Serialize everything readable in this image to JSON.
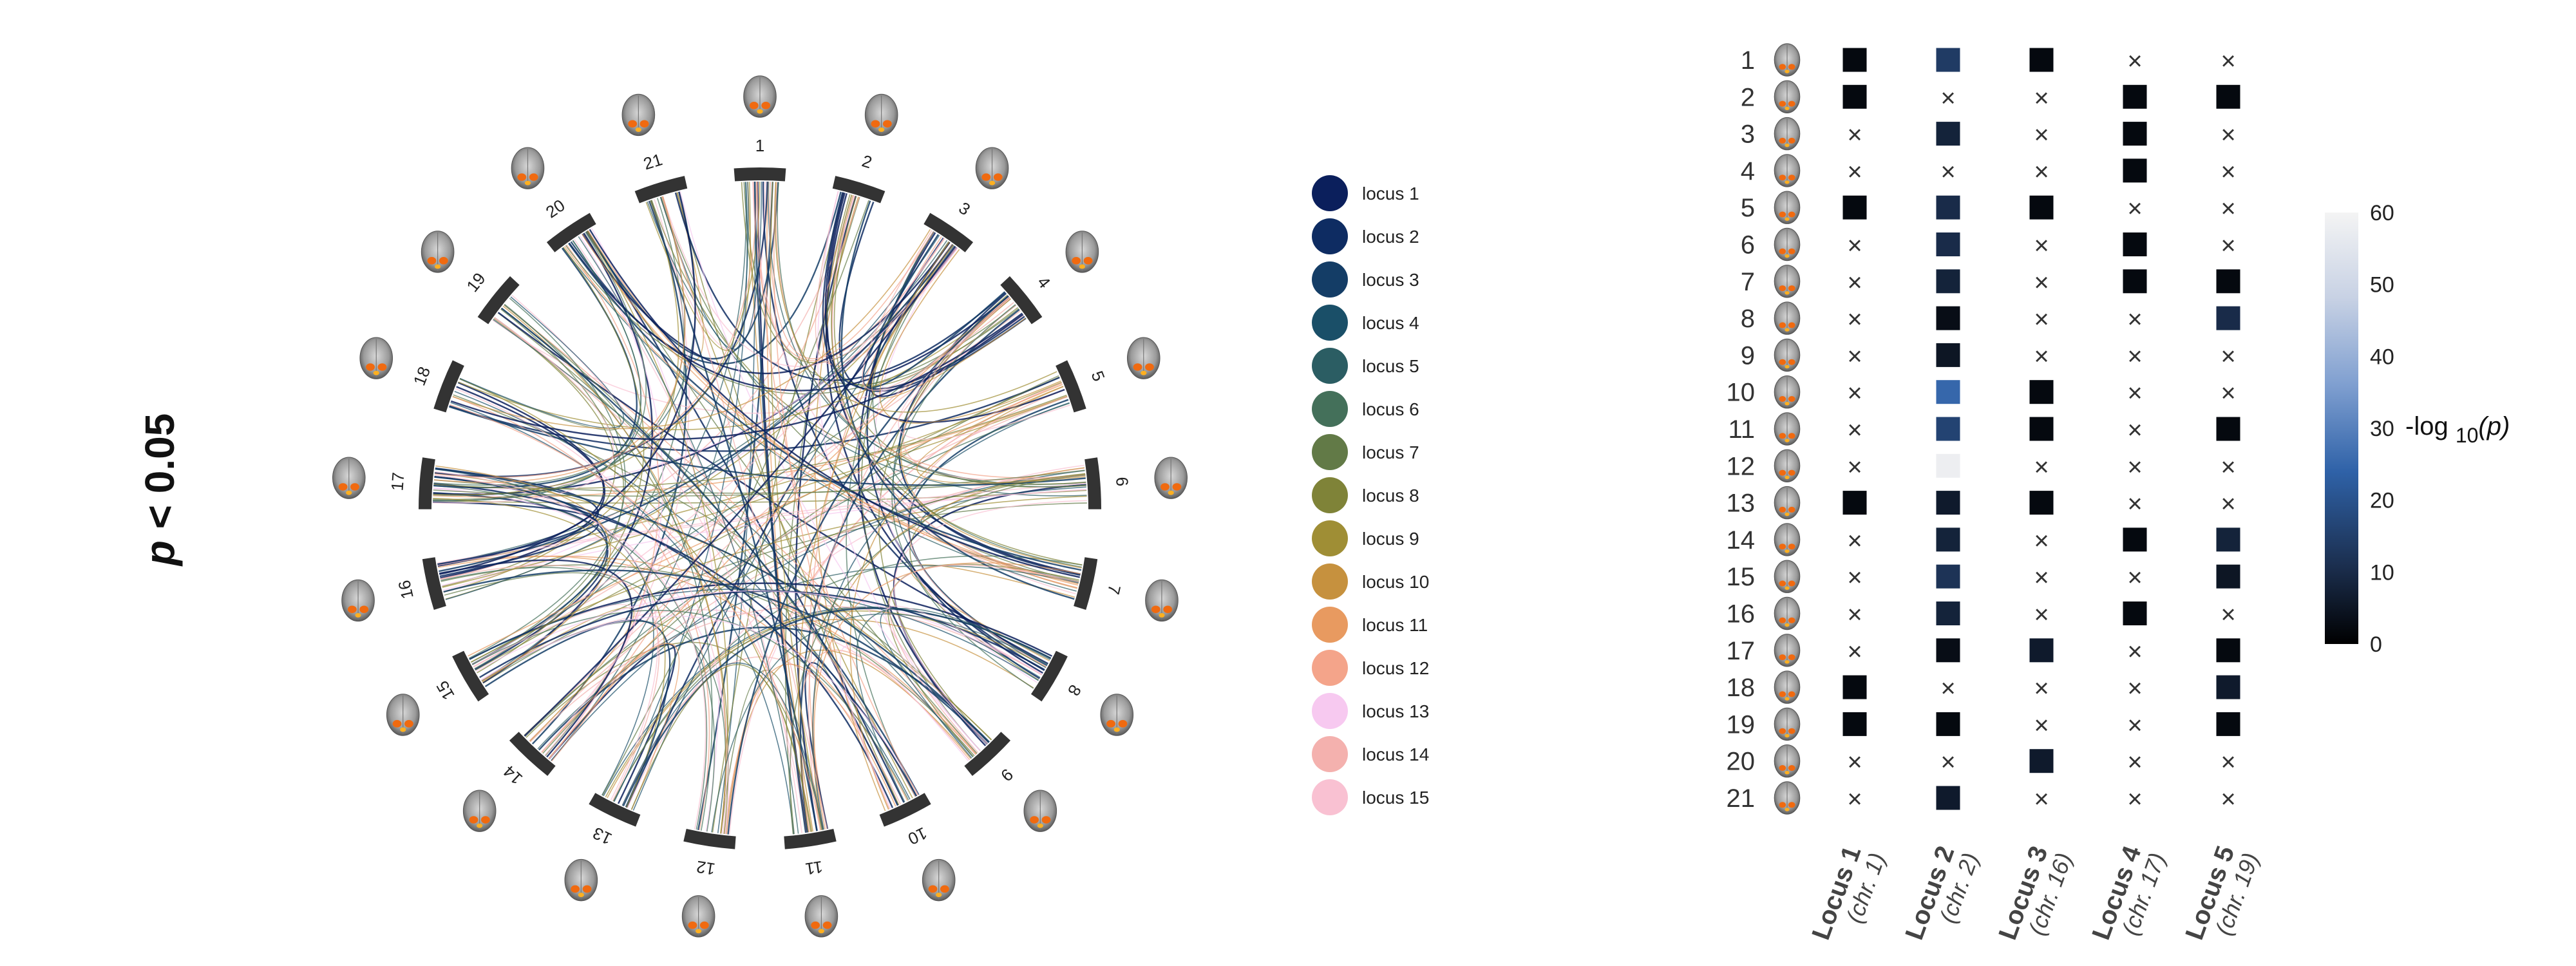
{
  "threshold": {
    "p": "p",
    "rest": " < 0.05"
  },
  "chord": {
    "numbers": [
      "1",
      "2",
      "3",
      "4",
      "5",
      "6",
      "7",
      "8",
      "9",
      "10",
      "11",
      "12",
      "13",
      "14",
      "15",
      "16",
      "17",
      "18",
      "19",
      "20",
      "21"
    ],
    "arc_color": "#333333"
  },
  "legend": [
    {
      "label": "locus 1",
      "color": "#0b1f5c"
    },
    {
      "label": "locus 2",
      "color": "#0e2c62"
    },
    {
      "label": "locus 3",
      "color": "#143d66"
    },
    {
      "label": "locus 4",
      "color": "#1a4f68"
    },
    {
      "label": "locus 5",
      "color": "#2b5d63"
    },
    {
      "label": "locus 6",
      "color": "#44705a"
    },
    {
      "label": "locus 7",
      "color": "#627a47"
    },
    {
      "label": "locus 8",
      "color": "#7f8338"
    },
    {
      "label": "locus 9",
      "color": "#9f8e35"
    },
    {
      "label": "locus 10",
      "color": "#c6913e"
    },
    {
      "label": "locus 11",
      "color": "#e89a60"
    },
    {
      "label": "locus 12",
      "color": "#f4a48a"
    },
    {
      "label": "locus 13",
      "color": "#f7c9f0"
    },
    {
      "label": "locus 14",
      "color": "#f4b1ae"
    },
    {
      "label": "locus 15",
      "color": "#f9c1d2"
    }
  ],
  "chart_data": {
    "type": "heatmap",
    "rows": [
      "1",
      "2",
      "3",
      "4",
      "5",
      "6",
      "7",
      "8",
      "9",
      "10",
      "11",
      "12",
      "13",
      "14",
      "15",
      "16",
      "17",
      "18",
      "19",
      "20",
      "21"
    ],
    "columns": [
      {
        "name": "Locus 1",
        "chr": "(chr. 1)"
      },
      {
        "name": "Locus 2",
        "chr": "(chr. 2)"
      },
      {
        "name": "Locus 3",
        "chr": "(chr. 16)"
      },
      {
        "name": "Locus 4",
        "chr": "(chr. 17)"
      },
      {
        "name": "Locus 5",
        "chr": "(chr. 19)"
      }
    ],
    "values": [
      [
        2,
        14,
        2,
        null,
        null
      ],
      [
        2,
        null,
        null,
        2,
        2
      ],
      [
        null,
        8,
        null,
        2,
        null
      ],
      [
        null,
        null,
        null,
        2,
        null
      ],
      [
        2,
        10,
        2,
        null,
        null
      ],
      [
        null,
        10,
        null,
        2,
        null
      ],
      [
        null,
        8,
        null,
        2,
        2
      ],
      [
        null,
        3,
        null,
        null,
        10
      ],
      [
        null,
        5,
        null,
        null,
        null
      ],
      [
        null,
        25,
        2,
        null,
        null
      ],
      [
        null,
        16,
        2,
        null,
        2
      ],
      [
        null,
        58,
        null,
        null,
        null
      ],
      [
        2,
        6,
        2,
        null,
        null
      ],
      [
        null,
        8,
        null,
        2,
        8
      ],
      [
        null,
        12,
        null,
        null,
        5
      ],
      [
        null,
        8,
        null,
        2,
        null
      ],
      [
        null,
        3,
        6,
        null,
        2
      ],
      [
        2,
        null,
        null,
        null,
        6
      ],
      [
        2,
        2,
        null,
        null,
        2
      ],
      [
        null,
        null,
        6,
        null,
        null
      ],
      [
        null,
        6,
        null,
        null,
        null
      ]
    ],
    "missing_marker": "×",
    "colorbar": {
      "min": 0,
      "max": 60,
      "ticks": [
        0,
        10,
        20,
        30,
        40,
        50,
        60
      ],
      "label_pre": "-log ",
      "label_sub": "10",
      "label_post": "(p)"
    }
  }
}
